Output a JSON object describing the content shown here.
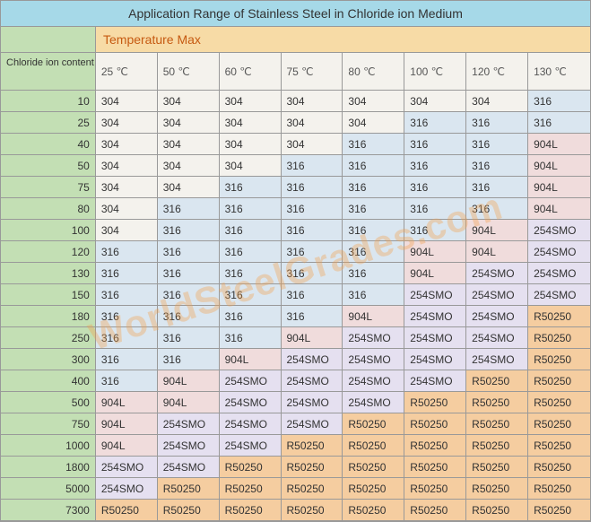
{
  "colors": {
    "title_bg": "#a6d9e8",
    "subhead_bg": "#f7dba6",
    "subhead_text": "#c65a11",
    "rowhead_bg": "#c3dfb4",
    "border": "#999999",
    "304": "#f4f2ed",
    "316": "#dae6f0",
    "904L": "#f0dcdc",
    "254SMO": "#e5e0f0",
    "R50250": "#f5cda0",
    "watermark": "#f5a04a"
  },
  "title": "Application Range of Stainless Steel in Chloride ion Medium",
  "subhead": "Temperature Max",
  "row_header_label": "Chloride ion content (mg/L)",
  "temps": [
    "25 ℃",
    "50 ℃",
    "60 ℃",
    "75 ℃",
    "80 ℃",
    "100 ℃",
    "120 ℃",
    "130 ℃"
  ],
  "concentrations": [
    "10",
    "25",
    "40",
    "50",
    "75",
    "80",
    "100",
    "120",
    "130",
    "150",
    "180",
    "250",
    "300",
    "400",
    "500",
    "750",
    "1000",
    "1800",
    "5000",
    "7300"
  ],
  "grid": [
    [
      "304",
      "304",
      "304",
      "304",
      "304",
      "304",
      "304",
      "316"
    ],
    [
      "304",
      "304",
      "304",
      "304",
      "304",
      "316",
      "316",
      "316"
    ],
    [
      "304",
      "304",
      "304",
      "304",
      "316",
      "316",
      "316",
      "904L"
    ],
    [
      "304",
      "304",
      "304",
      "316",
      "316",
      "316",
      "316",
      "904L"
    ],
    [
      "304",
      "304",
      "316",
      "316",
      "316",
      "316",
      "316",
      "904L"
    ],
    [
      "304",
      "316",
      "316",
      "316",
      "316",
      "316",
      "316",
      "904L"
    ],
    [
      "304",
      "316",
      "316",
      "316",
      "316",
      "316",
      "904L",
      "254SMO"
    ],
    [
      "316",
      "316",
      "316",
      "316",
      "316",
      "904L",
      "904L",
      "254SMO"
    ],
    [
      "316",
      "316",
      "316",
      "316",
      "316",
      "904L",
      "254SMO",
      "254SMO"
    ],
    [
      "316",
      "316",
      "316",
      "316",
      "316",
      "254SMO",
      "254SMO",
      "254SMO"
    ],
    [
      "316",
      "316",
      "316",
      "316",
      "904L",
      "254SMO",
      "254SMO",
      "R50250"
    ],
    [
      "316",
      "316",
      "316",
      "904L",
      "254SMO",
      "254SMO",
      "254SMO",
      "R50250"
    ],
    [
      "316",
      "316",
      "904L",
      "254SMO",
      "254SMO",
      "254SMO",
      "254SMO",
      "R50250"
    ],
    [
      "316",
      "904L",
      "254SMO",
      "254SMO",
      "254SMO",
      "254SMO",
      "R50250",
      "R50250"
    ],
    [
      "904L",
      "904L",
      "254SMO",
      "254SMO",
      "254SMO",
      "R50250",
      "R50250",
      "R50250"
    ],
    [
      "904L",
      "254SMO",
      "254SMO",
      "254SMO",
      "R50250",
      "R50250",
      "R50250",
      "R50250"
    ],
    [
      "904L",
      "254SMO",
      "254SMO",
      "R50250",
      "R50250",
      "R50250",
      "R50250",
      "R50250"
    ],
    [
      "254SMO",
      "254SMO",
      "R50250",
      "R50250",
      "R50250",
      "R50250",
      "R50250",
      "R50250"
    ],
    [
      "254SMO",
      "R50250",
      "R50250",
      "R50250",
      "R50250",
      "R50250",
      "R50250",
      "R50250"
    ],
    [
      "R50250",
      "R50250",
      "R50250",
      "R50250",
      "R50250",
      "R50250",
      "R50250",
      "R50250"
    ]
  ],
  "watermark": "WorldSteelGrades.com"
}
